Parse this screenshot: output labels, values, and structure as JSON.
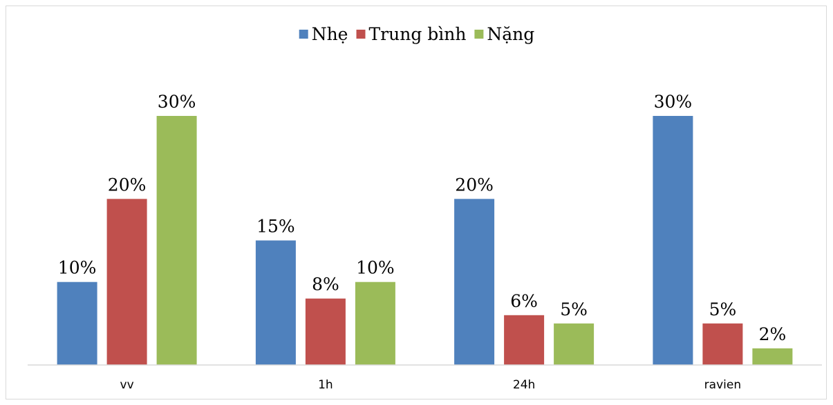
{
  "chart_data": {
    "type": "bar",
    "title": "",
    "xlabel": "",
    "ylabel": "",
    "categories": [
      "vv",
      "1h",
      "24h",
      "ravien"
    ],
    "series": [
      {
        "name": "Nhẹ",
        "color": "#4F81BD",
        "values": [
          10,
          15,
          20,
          30
        ],
        "labels": [
          "10%",
          "15%",
          "20%",
          "30%"
        ]
      },
      {
        "name": "Trung bình",
        "color": "#C0504D",
        "values": [
          20,
          8,
          6,
          5
        ],
        "labels": [
          "20%",
          "8%",
          "6%",
          "5%"
        ]
      },
      {
        "name": "Nặng",
        "color": "#9BBB59",
        "values": [
          30,
          10,
          5,
          2
        ],
        "labels": [
          "30%",
          "10%",
          "5%",
          "2%"
        ]
      }
    ],
    "ylim": [
      0,
      30
    ],
    "grid": false,
    "legend": "top-center",
    "value_axis_visible": false
  }
}
